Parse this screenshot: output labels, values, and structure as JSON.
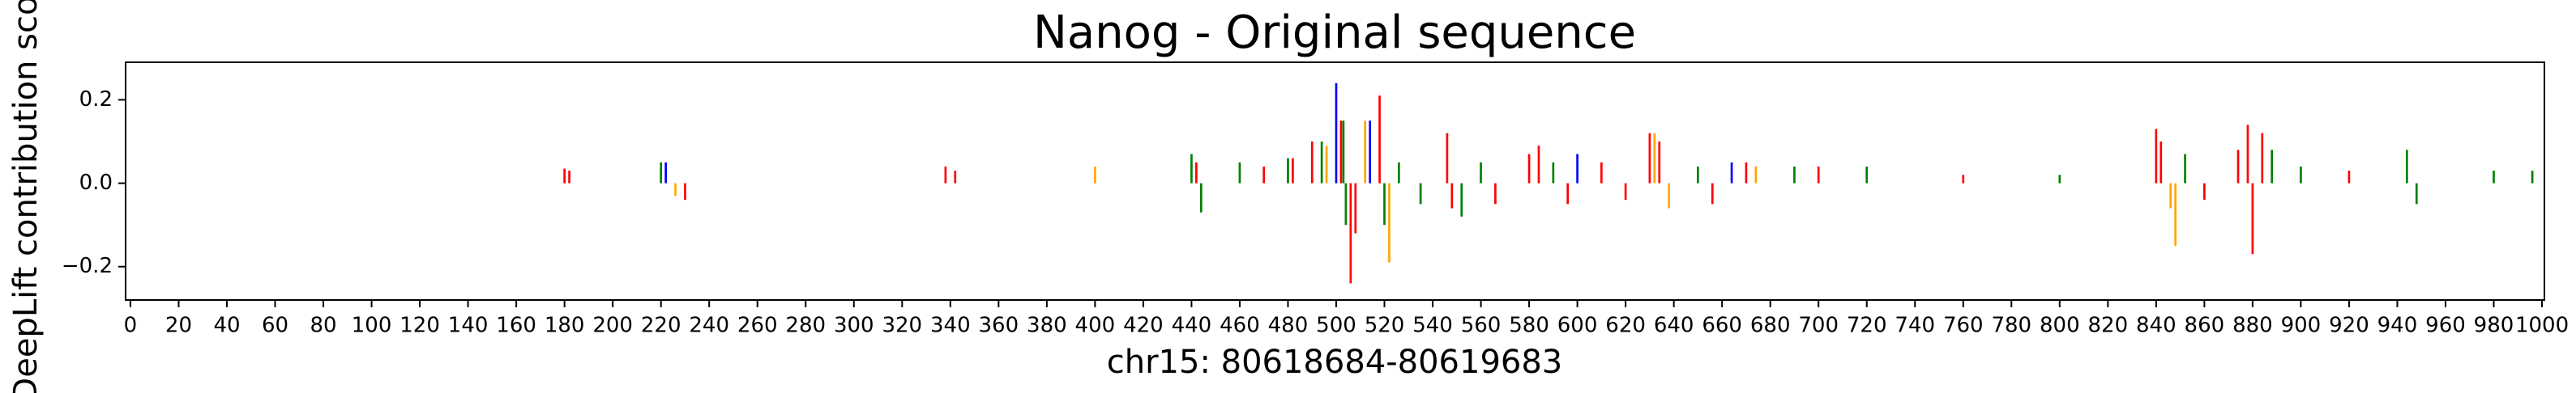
{
  "chart_data": {
    "type": "bar",
    "title": "Nanog - Original sequence",
    "x_label": "chr15: 80618684-80619683",
    "y_label": "DeepLift contribution score",
    "xlim": [
      -2,
      1001
    ],
    "ylim": [
      -0.28,
      0.29
    ],
    "xticks": [
      0,
      20,
      40,
      60,
      80,
      100,
      120,
      140,
      160,
      180,
      200,
      220,
      240,
      260,
      280,
      300,
      320,
      340,
      360,
      380,
      400,
      420,
      440,
      460,
      480,
      500,
      520,
      540,
      560,
      580,
      600,
      620,
      640,
      660,
      680,
      700,
      720,
      740,
      760,
      780,
      800,
      820,
      840,
      860,
      880,
      900,
      920,
      940,
      960,
      980,
      1000
    ],
    "yticks": [
      {
        "value": -0.2,
        "label": "−0.2"
      },
      {
        "value": 0.0,
        "label": "0.0"
      },
      {
        "value": 0.2,
        "label": "0.2"
      }
    ],
    "x": [
      180,
      182,
      220,
      222,
      226,
      230,
      338,
      342,
      400,
      440,
      442,
      444,
      460,
      470,
      480,
      482,
      490,
      494,
      496,
      500,
      502,
      503,
      504,
      506,
      508,
      512,
      514,
      518,
      520,
      522,
      526,
      535,
      546,
      548,
      552,
      560,
      566,
      580,
      584,
      590,
      596,
      600,
      610,
      620,
      630,
      632,
      634,
      638,
      650,
      656,
      664,
      670,
      674,
      690,
      700,
      720,
      760,
      800,
      840,
      842,
      846,
      848,
      852,
      860,
      874,
      878,
      880,
      884,
      888,
      900,
      920,
      944,
      948,
      980,
      996
    ],
    "values": [
      0.035,
      0.03,
      0.05,
      0.05,
      -0.03,
      -0.04,
      0.04,
      0.03,
      0.04,
      0.07,
      0.05,
      -0.07,
      0.05,
      0.04,
      0.06,
      0.06,
      0.1,
      0.1,
      0.09,
      0.24,
      0.15,
      0.15,
      -0.1,
      -0.24,
      -0.12,
      0.15,
      0.15,
      0.21,
      -0.1,
      -0.19,
      0.05,
      -0.05,
      0.12,
      -0.06,
      -0.08,
      0.05,
      -0.05,
      0.07,
      0.09,
      0.05,
      -0.05,
      0.07,
      0.05,
      -0.04,
      0.12,
      0.12,
      0.1,
      -0.06,
      0.04,
      -0.05,
      0.05,
      0.05,
      0.04,
      0.04,
      0.04,
      0.04,
      0.02,
      0.02,
      0.13,
      0.1,
      -0.06,
      -0.15,
      0.07,
      -0.04,
      0.08,
      0.14,
      -0.17,
      0.12,
      0.08,
      0.04,
      0.03,
      0.08,
      -0.05,
      0.03,
      0.03
    ],
    "colors": [
      "#ff0000",
      "#ff0000",
      "#008000",
      "#0000ff",
      "#ffa500",
      "#ff0000",
      "#ff0000",
      "#ff0000",
      "#ffa500",
      "#008000",
      "#ff0000",
      "#008000",
      "#008000",
      "#ff0000",
      "#008000",
      "#ff0000",
      "#ff0000",
      "#008000",
      "#ffa500",
      "#0000ff",
      "#ff0000",
      "#008000",
      "#008000",
      "#ff0000",
      "#ff0000",
      "#ffa500",
      "#0000ff",
      "#ff0000",
      "#008000",
      "#ffa500",
      "#008000",
      "#008000",
      "#ff0000",
      "#ff0000",
      "#008000",
      "#008000",
      "#ff0000",
      "#ff0000",
      "#ff0000",
      "#008000",
      "#ff0000",
      "#0000ff",
      "#ff0000",
      "#ff0000",
      "#ff0000",
      "#ffa500",
      "#ff0000",
      "#ffa500",
      "#008000",
      "#ff0000",
      "#0000ff",
      "#ff0000",
      "#ffa500",
      "#008000",
      "#ff0000",
      "#008000",
      "#ff0000",
      "#008000",
      "#ff0000",
      "#ff0000",
      "#ffa500",
      "#ffa500",
      "#008000",
      "#ff0000",
      "#ff0000",
      "#ff0000",
      "#ff0000",
      "#ff0000",
      "#008000",
      "#008000",
      "#ff0000",
      "#008000",
      "#008000",
      "#008000",
      "#008000"
    ]
  }
}
